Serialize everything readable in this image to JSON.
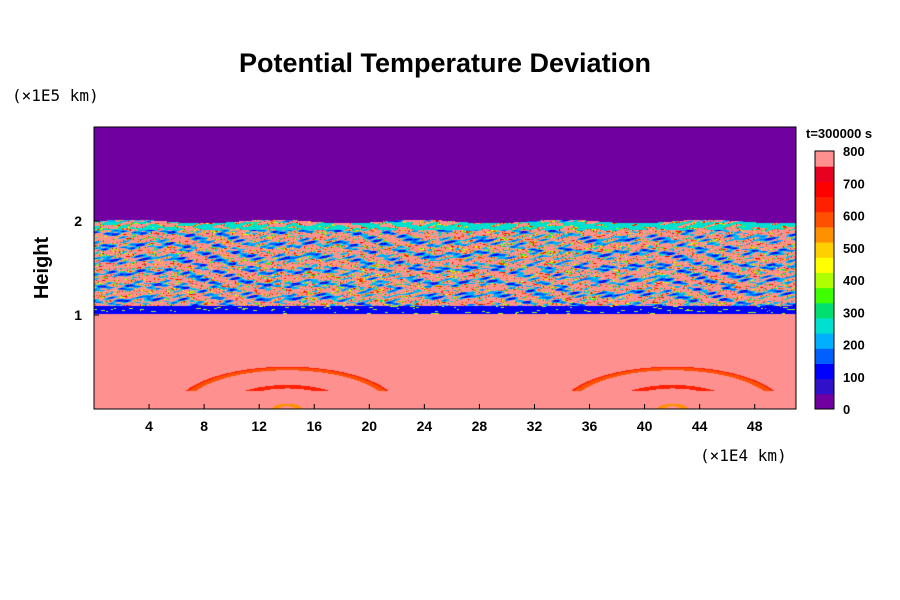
{
  "chart_data": {
    "type": "heatmap",
    "title": "Potential Temperature Deviation",
    "ylabel": "Height",
    "y_unit": "(×1E5 km)",
    "x_unit": "(×1E4 km)",
    "time_label": "t=300000 s",
    "x_range": [
      0,
      51
    ],
    "y_range": [
      0,
      3
    ],
    "x_ticks": [
      4,
      8,
      12,
      16,
      20,
      24,
      28,
      32,
      36,
      40,
      44,
      48
    ],
    "y_ticks": [
      1,
      2
    ],
    "colorbar": {
      "min": 0,
      "max": 800,
      "ticks": [
        0,
        100,
        200,
        300,
        400,
        500,
        600,
        700,
        800
      ],
      "colors": [
        "#7000a0",
        "#3010c8",
        "#0000ff",
        "#0060ff",
        "#00b0ff",
        "#00e0d0",
        "#00e070",
        "#40ff00",
        "#b0ff00",
        "#ffff00",
        "#ffd000",
        "#ff9000",
        "#ff5000",
        "#ff2000",
        "#ff0000",
        "#e80020",
        "#ff9090"
      ]
    },
    "regions": [
      {
        "description": "upper layer",
        "y_range": [
          2.0,
          3.0
        ],
        "value": 0
      },
      {
        "description": "turbulent mixing layer",
        "y_range": [
          1.1,
          2.0
        ],
        "value": "mixed 0-800"
      },
      {
        "description": "thin low band",
        "y_range": [
          1.02,
          1.1
        ],
        "value": 100
      },
      {
        "description": "lower layer",
        "y_range": [
          0,
          1.0
        ],
        "value": 800
      },
      {
        "description": "wave arcs",
        "centers_x": [
          14,
          42
        ],
        "value": "600-700"
      }
    ]
  }
}
